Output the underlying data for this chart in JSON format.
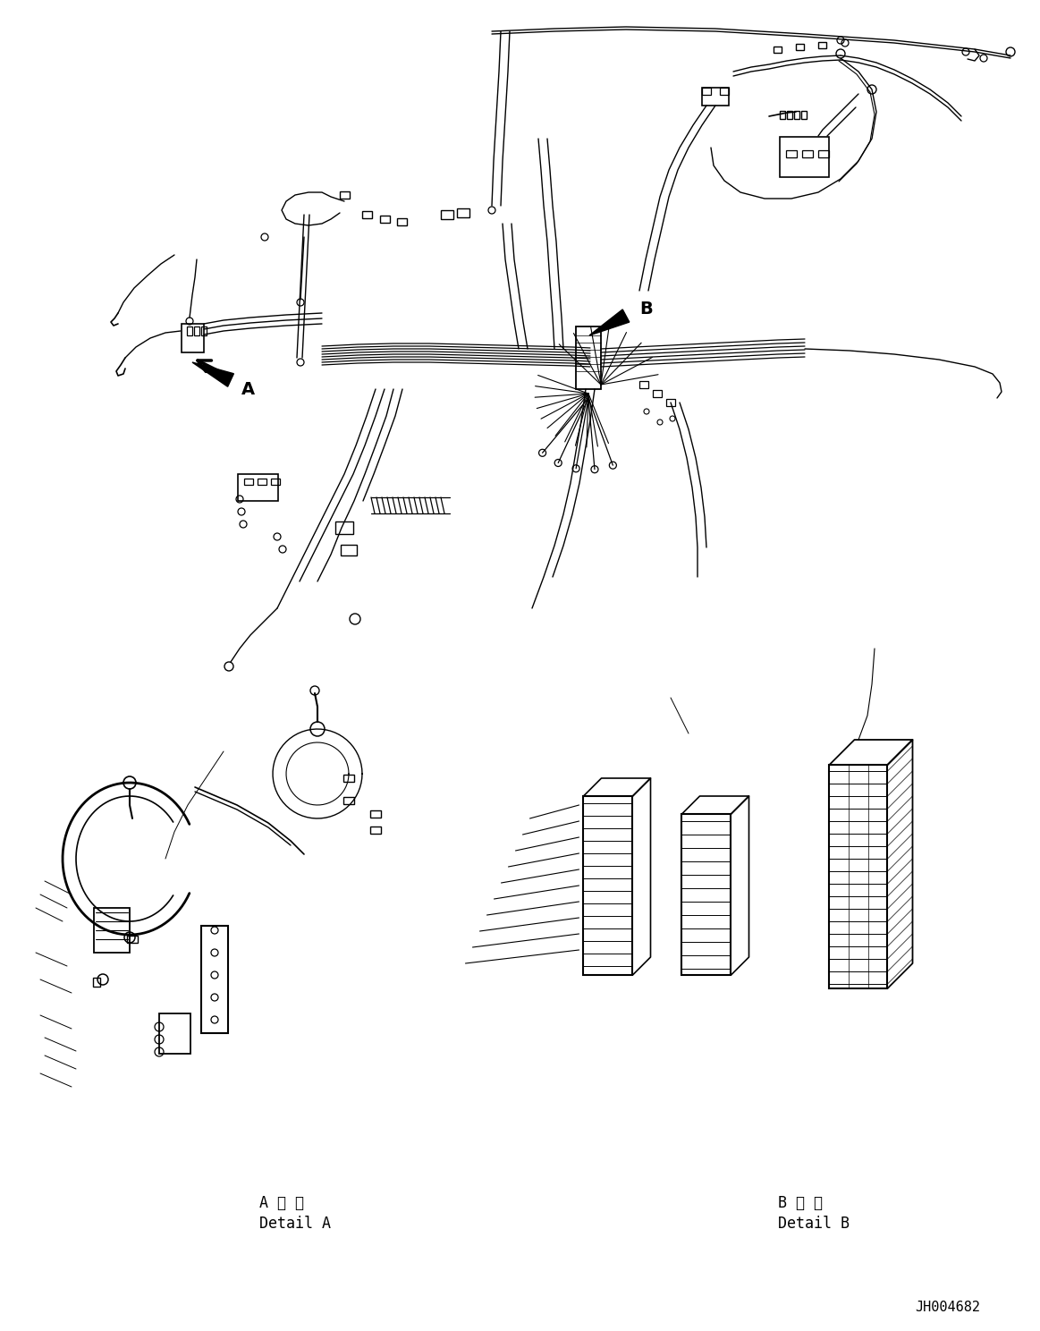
{
  "bg_color": "#ffffff",
  "line_color": "#000000",
  "fig_width": 11.63,
  "fig_height": 14.88,
  "dpi": 100,
  "part_number": "JH004682",
  "label_A": "A",
  "label_B": "B",
  "detail_A_kanji": "A 詳 細",
  "detail_A_roman": "Detail A",
  "detail_B_kanji": "B 詳 細",
  "detail_B_roman": "Detail B"
}
